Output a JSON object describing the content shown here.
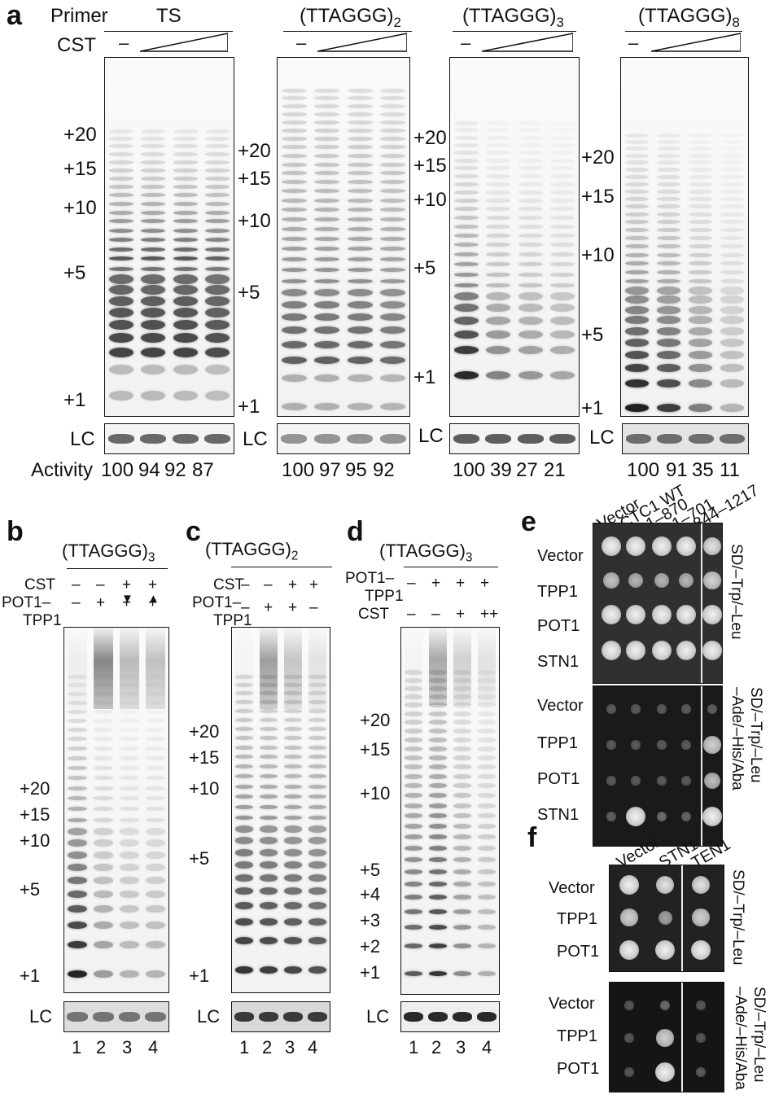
{
  "panel_a": {
    "label": "a",
    "primer_label": "Primer",
    "cst_label": "CST",
    "minus": "–",
    "lc_label": "LC",
    "activity_label": "Activity",
    "gels": [
      {
        "primer": "TS",
        "primer_sub": "",
        "size_markers": [
          "+20",
          "+15",
          "+10",
          "+5",
          "+1"
        ],
        "activity": [
          "100",
          "94",
          "92",
          "87"
        ]
      },
      {
        "primer": "(TTAGGG)",
        "primer_sub": "2",
        "size_markers": [
          "+20",
          "+15",
          "+10",
          "+5",
          "+1"
        ],
        "activity": [
          "100",
          "97",
          "95",
          "92"
        ]
      },
      {
        "primer": "(TTAGGG)",
        "primer_sub": "3",
        "size_markers": [
          "+20",
          "+15",
          "+10",
          "+5",
          "+1"
        ],
        "activity": [
          "100",
          "39",
          "27",
          "21"
        ]
      },
      {
        "primer": "(TTAGGG)",
        "primer_sub": "8",
        "size_markers": [
          "+20",
          "+15",
          "+10",
          "+5",
          "+1"
        ],
        "activity": [
          "100",
          "91",
          "35",
          "11"
        ]
      }
    ]
  },
  "panel_b": {
    "label": "b",
    "primer": "(TTAGGG)",
    "primer_sub": "3",
    "row1_label": "CST",
    "row1": [
      "–",
      "–",
      "+",
      "+"
    ],
    "arrows": [
      "▼",
      "▲"
    ],
    "row2_label_line1": "POT1–",
    "row2_label_line2": "TPP1",
    "row2": [
      "–",
      "+",
      "+",
      "+"
    ],
    "size_markers": [
      "+20",
      "+15",
      "+10",
      "+5",
      "+1"
    ],
    "lc_label": "LC",
    "lanes": [
      "1",
      "2",
      "3",
      "4"
    ]
  },
  "panel_c": {
    "label": "c",
    "primer": "(TTAGGG)",
    "primer_sub": "2",
    "row1_label": "CST",
    "row1": [
      "–",
      "–",
      "+",
      "+"
    ],
    "row2_label_line1": "POT1–",
    "row2_label_line2": "TPP1",
    "row2": [
      "–",
      "+",
      "+",
      "–"
    ],
    "size_markers": [
      "+20",
      "+15",
      "+10",
      "+5",
      "+1"
    ],
    "lc_label": "LC",
    "lanes": [
      "1",
      "2",
      "3",
      "4"
    ]
  },
  "panel_d": {
    "label": "d",
    "primer": "(TTAGGG)",
    "primer_sub": "3",
    "row1_label_line1": "POT1–",
    "row1_label_line2": "TPP1",
    "row1": [
      "–",
      "+",
      "+",
      "+"
    ],
    "row2_label": "CST",
    "row2": [
      "–",
      "–",
      "+",
      "++"
    ],
    "size_markers": [
      "+20",
      "+15",
      "+10",
      "+5",
      "+4",
      "+3",
      "+2",
      "+1"
    ],
    "lc_label": "LC",
    "lanes": [
      "1",
      "2",
      "3",
      "4"
    ]
  },
  "panel_e": {
    "label": "e",
    "columns": [
      "Vector",
      "CTC1 WT",
      "1–870",
      "1–701",
      "844–1217"
    ],
    "rows_top": [
      "Vector",
      "TPP1",
      "POT1",
      "STN1"
    ],
    "rows_bottom": [
      "Vector",
      "TPP1",
      "POT1",
      "STN1"
    ],
    "media_top": "SD/–Trp/–Leu",
    "media_bottom_line1": "SD/–Trp/–Leu",
    "media_bottom_line2": "–Ade/–His/Aba"
  },
  "panel_f": {
    "label": "f",
    "columns": [
      "Vector",
      "STN1",
      "TEN1"
    ],
    "rows_top": [
      "Vector",
      "TPP1",
      "POT1"
    ],
    "rows_bottom": [
      "Vector",
      "TPP1",
      "POT1"
    ],
    "media_top": "SD/–Trp/–Leu",
    "media_bottom_line1": "SD/–Trp/–Leu",
    "media_bottom_line2": "–Ade/–His/Aba"
  }
}
